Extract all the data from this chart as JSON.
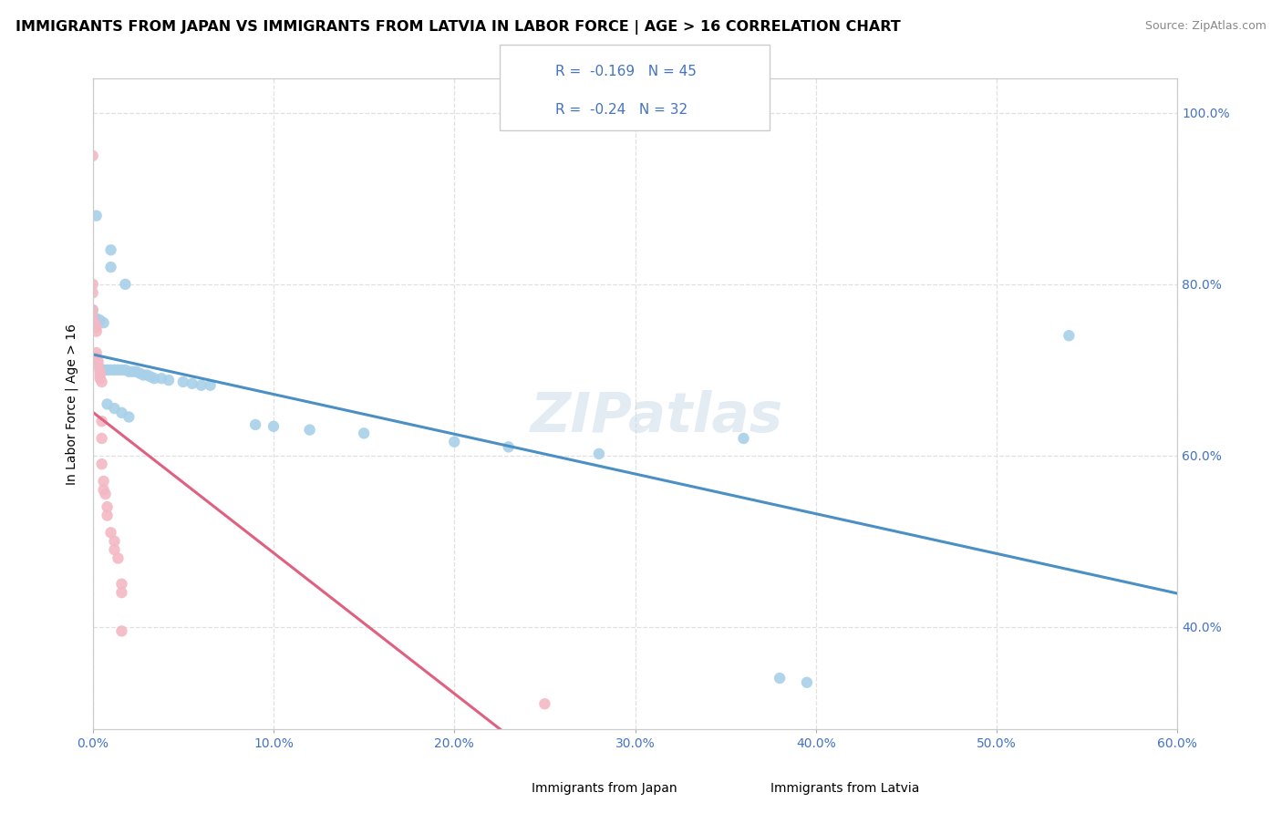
{
  "title": "IMMIGRANTS FROM JAPAN VS IMMIGRANTS FROM LATVIA IN LABOR FORCE | AGE > 16 CORRELATION CHART",
  "source": "Source: ZipAtlas.com",
  "ylabel": "In Labor Force | Age > 16",
  "r_japan": -0.169,
  "n_japan": 45,
  "r_latvia": -0.24,
  "n_latvia": 32,
  "japan_color": "#a8d0e8",
  "latvia_color": "#f4b8c4",
  "japan_line_color": "#4a90c4",
  "latvia_line_color": "#e06080",
  "trend_ext_color": "#d0b0b8",
  "watermark": "ZIPatlas",
  "japan_points": [
    [
      0.002,
      0.88
    ],
    [
      0.01,
      0.84
    ],
    [
      0.01,
      0.82
    ],
    [
      0.018,
      0.8
    ],
    [
      0.0,
      0.77
    ],
    [
      0.002,
      0.76
    ],
    [
      0.004,
      0.758
    ],
    [
      0.006,
      0.755
    ],
    [
      0.004,
      0.7
    ],
    [
      0.006,
      0.7
    ],
    [
      0.008,
      0.7
    ],
    [
      0.01,
      0.7
    ],
    [
      0.012,
      0.7
    ],
    [
      0.014,
      0.7
    ],
    [
      0.016,
      0.7
    ],
    [
      0.018,
      0.7
    ],
    [
      0.02,
      0.698
    ],
    [
      0.022,
      0.698
    ],
    [
      0.024,
      0.698
    ],
    [
      0.026,
      0.696
    ],
    [
      0.028,
      0.694
    ],
    [
      0.03,
      0.694
    ],
    [
      0.032,
      0.692
    ],
    [
      0.034,
      0.69
    ],
    [
      0.038,
      0.69
    ],
    [
      0.042,
      0.688
    ],
    [
      0.05,
      0.686
    ],
    [
      0.055,
      0.684
    ],
    [
      0.06,
      0.682
    ],
    [
      0.065,
      0.682
    ],
    [
      0.008,
      0.66
    ],
    [
      0.012,
      0.655
    ],
    [
      0.016,
      0.65
    ],
    [
      0.02,
      0.645
    ],
    [
      0.09,
      0.636
    ],
    [
      0.1,
      0.634
    ],
    [
      0.12,
      0.63
    ],
    [
      0.15,
      0.626
    ],
    [
      0.2,
      0.616
    ],
    [
      0.23,
      0.61
    ],
    [
      0.28,
      0.602
    ],
    [
      0.36,
      0.62
    ],
    [
      0.38,
      0.34
    ],
    [
      0.395,
      0.335
    ],
    [
      0.54,
      0.74
    ]
  ],
  "latvia_points": [
    [
      0.0,
      0.95
    ],
    [
      0.0,
      0.8
    ],
    [
      0.0,
      0.79
    ],
    [
      0.0,
      0.77
    ],
    [
      0.0,
      0.76
    ],
    [
      0.001,
      0.755
    ],
    [
      0.002,
      0.75
    ],
    [
      0.002,
      0.745
    ],
    [
      0.002,
      0.72
    ],
    [
      0.002,
      0.715
    ],
    [
      0.003,
      0.71
    ],
    [
      0.003,
      0.705
    ],
    [
      0.004,
      0.698
    ],
    [
      0.004,
      0.694
    ],
    [
      0.004,
      0.69
    ],
    [
      0.005,
      0.686
    ],
    [
      0.005,
      0.64
    ],
    [
      0.005,
      0.62
    ],
    [
      0.005,
      0.59
    ],
    [
      0.006,
      0.57
    ],
    [
      0.006,
      0.56
    ],
    [
      0.007,
      0.555
    ],
    [
      0.008,
      0.54
    ],
    [
      0.008,
      0.53
    ],
    [
      0.01,
      0.51
    ],
    [
      0.012,
      0.5
    ],
    [
      0.012,
      0.49
    ],
    [
      0.014,
      0.48
    ],
    [
      0.016,
      0.45
    ],
    [
      0.016,
      0.44
    ],
    [
      0.016,
      0.395
    ],
    [
      0.25,
      0.31
    ]
  ],
  "xlim": [
    0.0,
    0.6
  ],
  "ylim": [
    0.28,
    1.04
  ],
  "x_ticks": [
    0.0,
    0.1,
    0.2,
    0.3,
    0.4,
    0.5,
    0.6
  ],
  "y_ticks": [
    0.4,
    0.6,
    0.8,
    1.0
  ],
  "background_color": "#ffffff",
  "grid_color": "#e0e0e0"
}
